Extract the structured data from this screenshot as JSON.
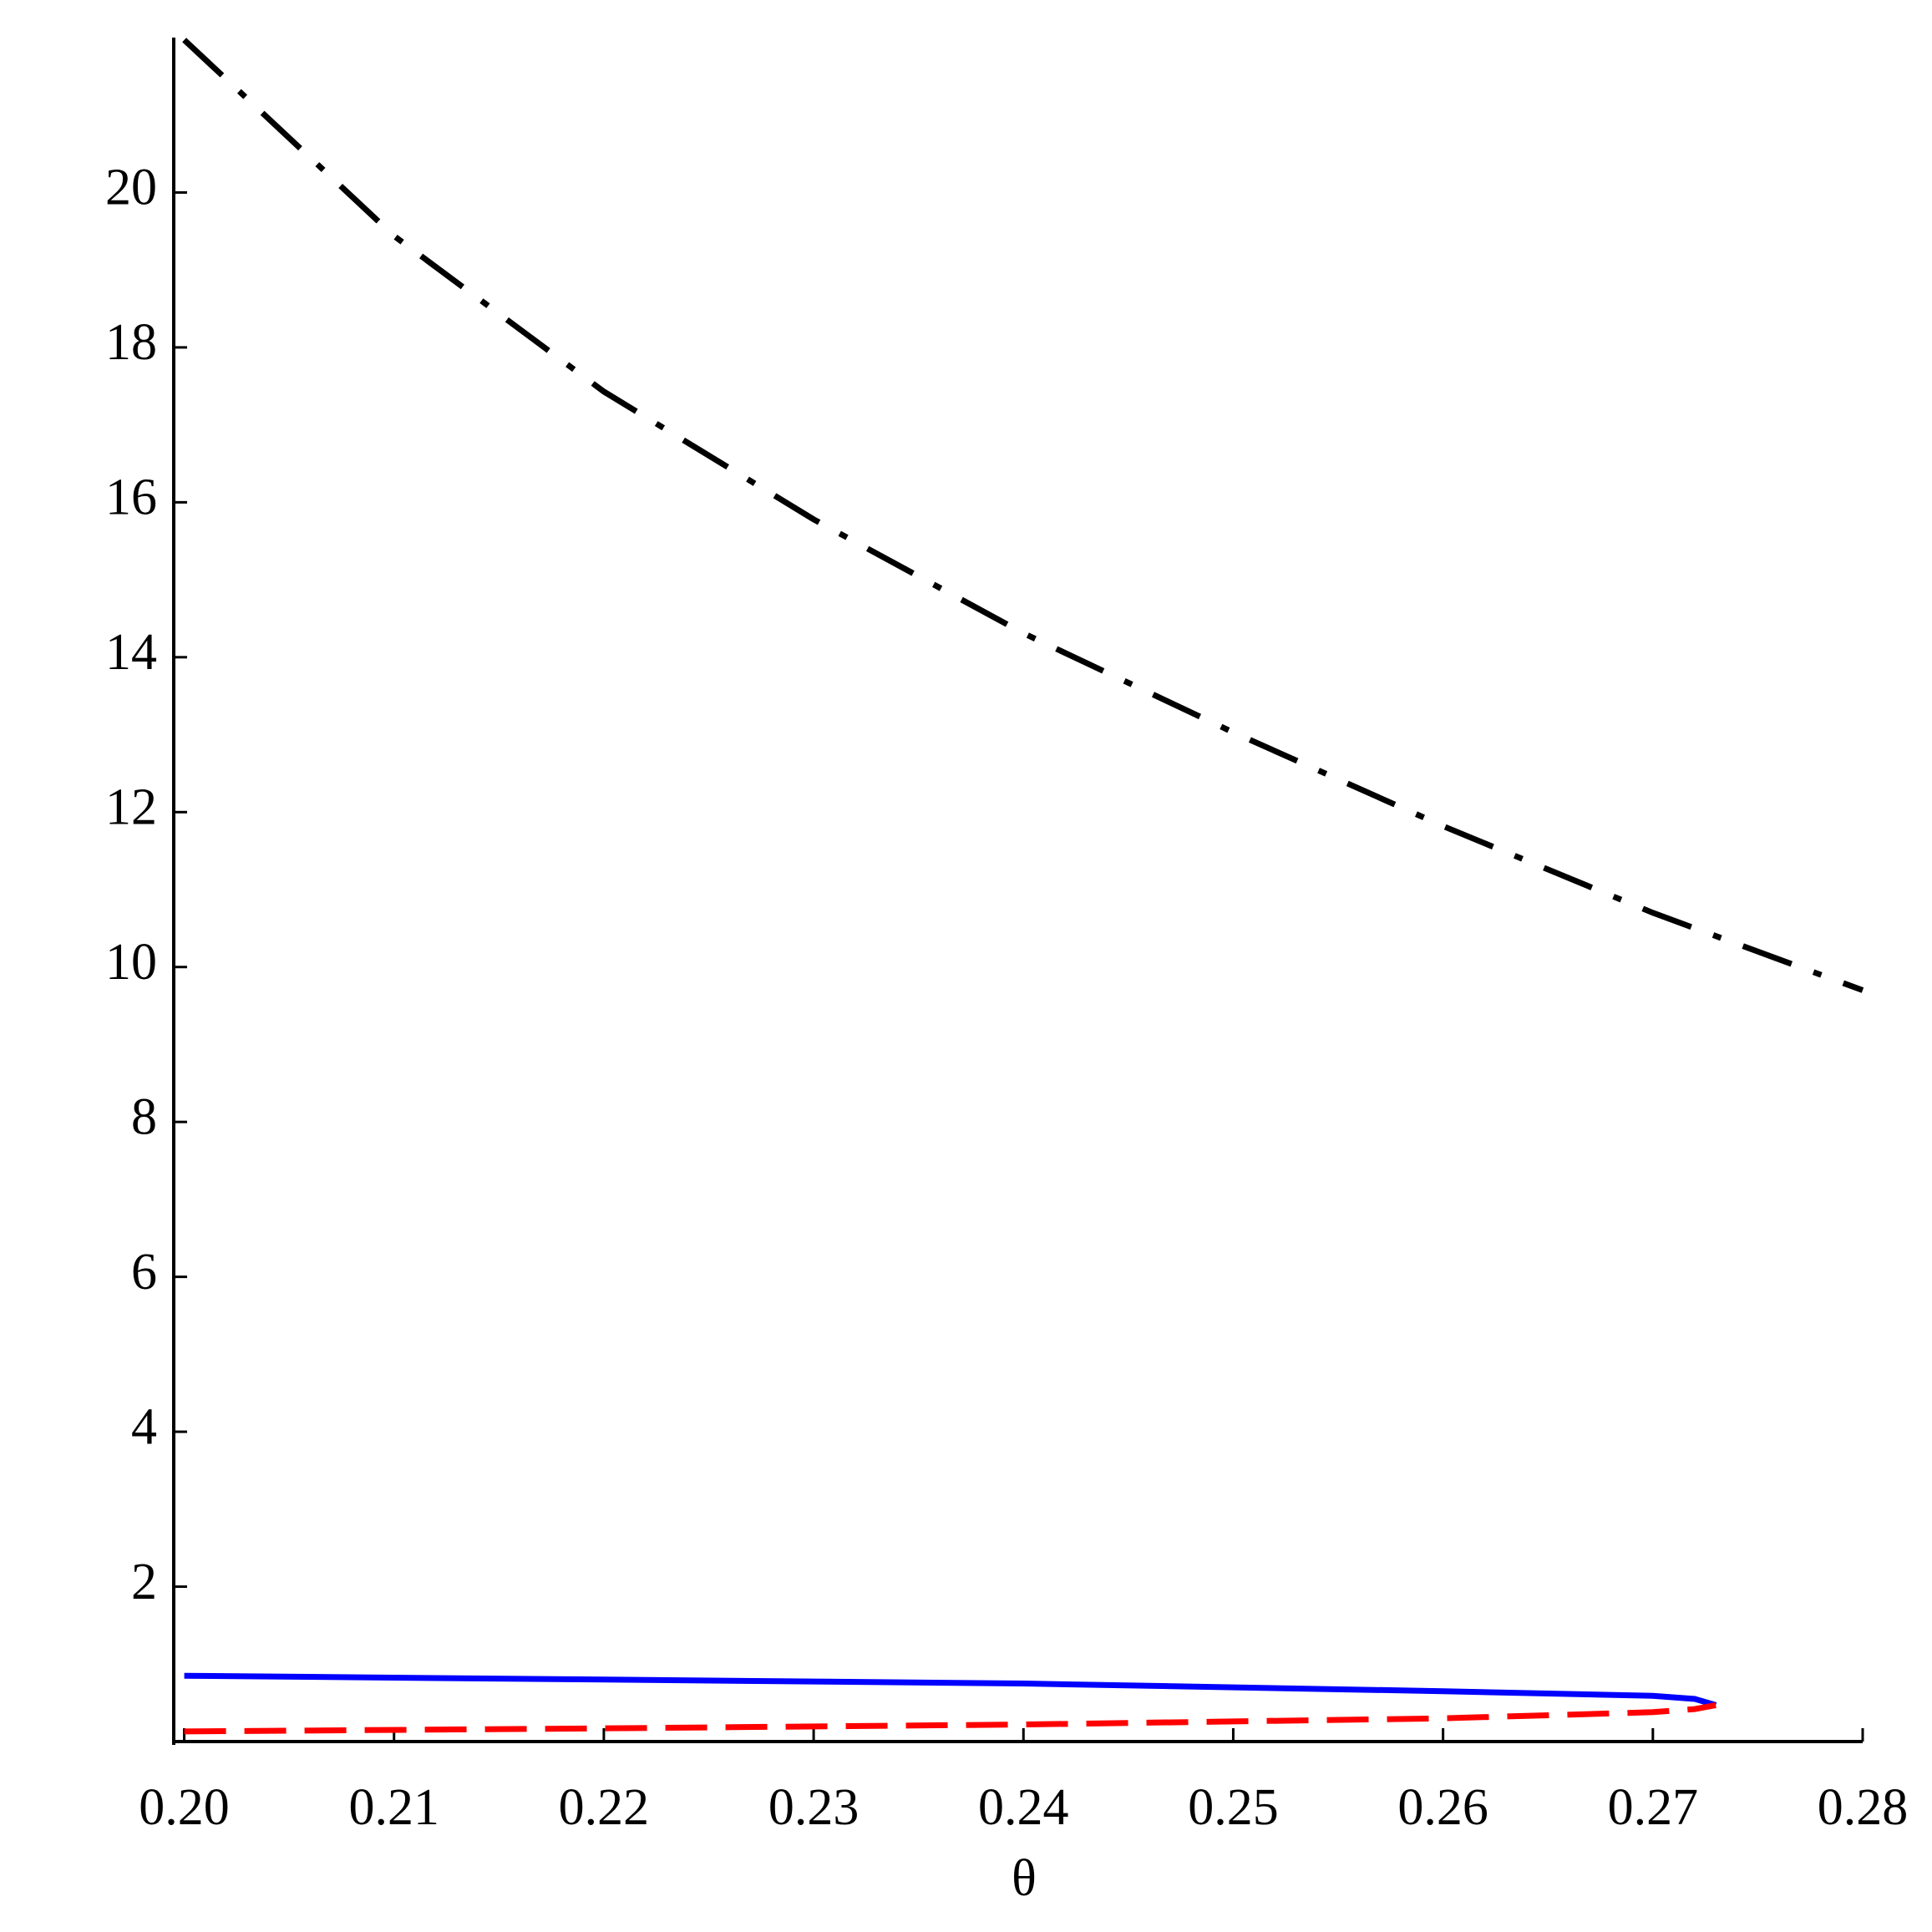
{
  "chart_data": {
    "type": "line",
    "x_label": "θ",
    "xlim": [
      0.1995,
      0.28
    ],
    "ylim": [
      0,
      22
    ],
    "xticks": [
      {
        "value": 0.2,
        "label": "0.20"
      },
      0.21,
      0.22,
      0.23,
      0.24,
      0.25,
      0.26,
      0.27,
      0.28
    ],
    "yticks": [
      2,
      4,
      6,
      8,
      10,
      12,
      14,
      16,
      18,
      20
    ],
    "series": [
      {
        "color": "#000000",
        "style": "dashdot",
        "x": [
          0.2,
          0.21,
          0.22,
          0.23,
          0.24,
          0.25,
          0.26,
          0.27,
          0.28
        ],
        "values": [
          21.97,
          19.44,
          17.43,
          15.78,
          14.31,
          13.03,
          11.82,
          10.7,
          9.7
        ]
      },
      {
        "color": "#0000ff",
        "style": "solid",
        "x": [
          0.2,
          0.22,
          0.24,
          0.26,
          0.27,
          0.272,
          0.273
        ],
        "values": [
          0.85,
          0.8,
          0.75,
          0.65,
          0.59,
          0.55,
          0.47
        ]
      },
      {
        "color": "#ff0000",
        "style": "dashed",
        "x": [
          0.2,
          0.22,
          0.24,
          0.26,
          0.27,
          0.272,
          0.273
        ],
        "values": [
          0.13,
          0.17,
          0.22,
          0.3,
          0.38,
          0.42,
          0.47
        ]
      }
    ]
  }
}
